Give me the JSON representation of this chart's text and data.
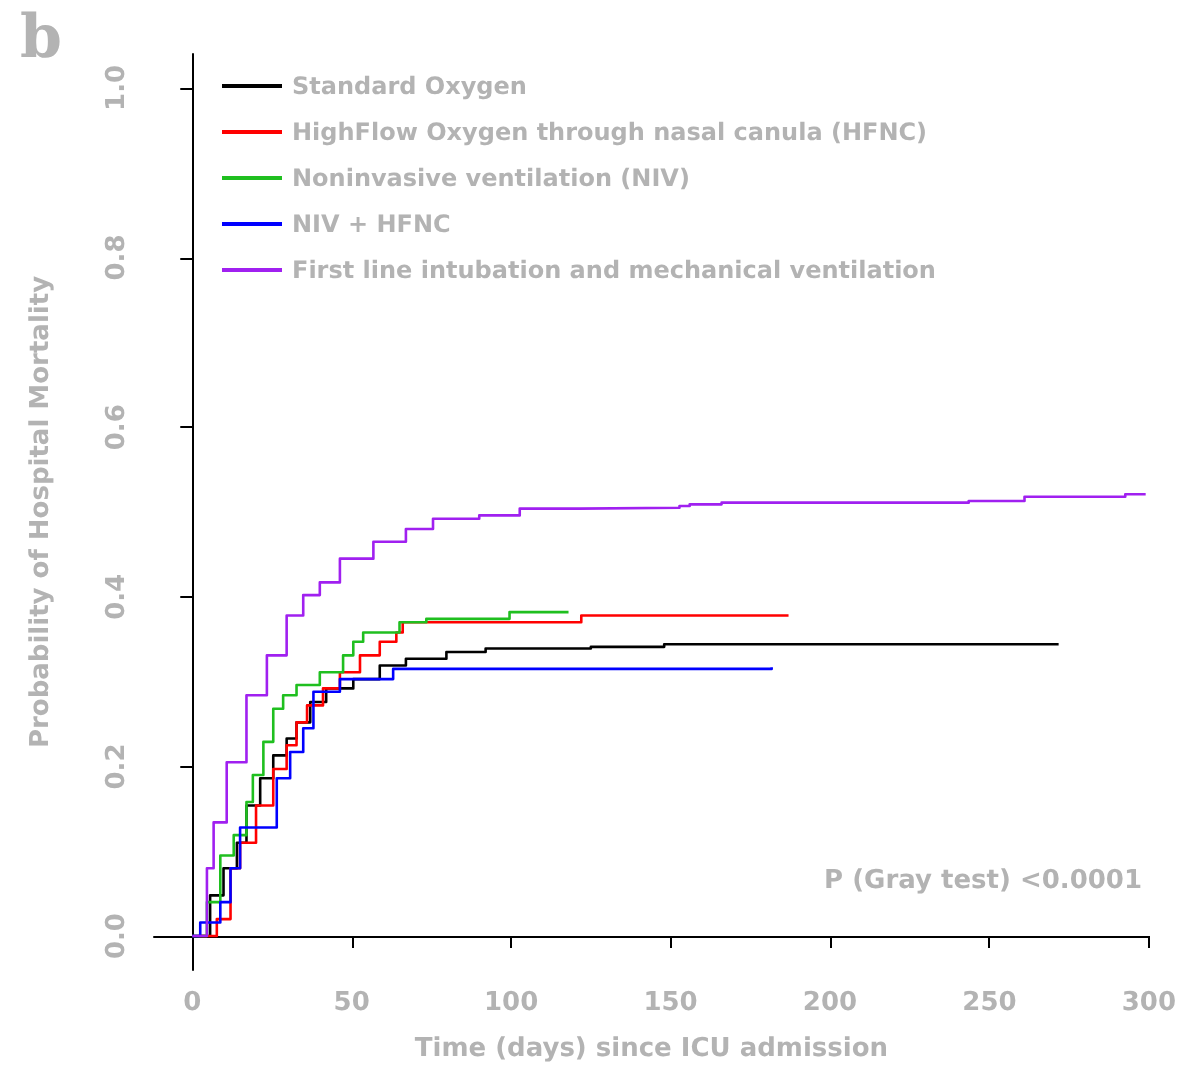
{
  "chart_data": {
    "type": "step",
    "xlabel": "Time (days) since ICU admission",
    "ylabel": "Probability of Hospital Mortality",
    "annotations": [
      "b",
      "P (Gray test) <0.0001"
    ],
    "xlim": [
      -12,
      300
    ],
    "xticks": [
      0,
      50,
      100,
      150,
      200,
      250,
      300
    ],
    "ylim": [
      -0.04,
      1.04
    ],
    "yticks": [
      {
        "value": 0,
        "label": "0.0"
      },
      0.2,
      0.4,
      0.6,
      0.8,
      {
        "value": 1,
        "label": "1.0"
      }
    ],
    "grid": false,
    "legend": "top left",
    "marker": "none",
    "line_style": "solid",
    "series": [
      {
        "name": "Standard Oxygen",
        "color": "#000000",
        "x": [
          0,
          5.6,
          9.8,
          14,
          17,
          21.3,
          25.4,
          29.6,
          32.7,
          37,
          42,
          50.5,
          58.8,
          67,
          79.7,
          92,
          125,
          148,
          271.7
        ],
        "values": [
          0,
          0.048,
          0.08,
          0.11,
          0.154,
          0.186,
          0.213,
          0.233,
          0.252,
          0.276,
          0.292,
          0.303,
          0.319,
          0.327,
          0.335,
          0.339,
          0.341,
          0.344,
          0.344
        ]
      },
      {
        "name": "HighFlow Oxygen through nasal canula (HFNC)",
        "color": "#ff0000",
        "x": [
          2,
          7.7,
          12,
          15,
          20,
          25.4,
          29.6,
          32.7,
          36,
          41,
          46.3,
          52.6,
          58.8,
          64,
          66,
          122,
          187
        ],
        "values": [
          0,
          0.02,
          0.08,
          0.11,
          0.154,
          0.197,
          0.225,
          0.252,
          0.272,
          0.292,
          0.311,
          0.331,
          0.347,
          0.358,
          0.37,
          0.378,
          0.378
        ]
      },
      {
        "name": "Noninvasive ventilation (NIV)",
        "color": "#1fbf1f",
        "x": [
          0,
          4.6,
          8.8,
          13,
          17,
          19,
          22.3,
          25.4,
          28.5,
          32.7,
          40,
          47.3,
          50.5,
          53.6,
          65,
          73.4,
          99.5,
          118
        ],
        "values": [
          0,
          0.04,
          0.095,
          0.119,
          0.158,
          0.19,
          0.229,
          0.268,
          0.284,
          0.296,
          0.311,
          0.331,
          0.347,
          0.358,
          0.37,
          0.374,
          0.382,
          0.382
        ]
      },
      {
        "name": "NIV + HFNC",
        "color": "#0000ff",
        "x": [
          0,
          2.5,
          8.8,
          12,
          15,
          26.5,
          30.7,
          34.8,
          38,
          46.3,
          63,
          181.7
        ],
        "values": [
          0,
          0.016,
          0.04,
          0.08,
          0.128,
          0.186,
          0.217,
          0.245,
          0.288,
          0.303,
          0.315,
          0.317
        ]
      },
      {
        "name": "First line intubation and mechanical ventilation",
        "color": "#a020f0",
        "x": [
          0,
          4.6,
          6.7,
          10.8,
          17,
          23.4,
          29.6,
          34.8,
          40,
          46.3,
          56.8,
          67,
          75.5,
          90,
          102.7,
          121.5,
          152.8,
          156,
          166,
          243.5,
          261,
          292.6,
          299
        ],
        "values": [
          0,
          0.08,
          0.134,
          0.205,
          0.284,
          0.331,
          0.378,
          0.402,
          0.417,
          0.445,
          0.465,
          0.48,
          0.492,
          0.496,
          0.504,
          0.505,
          0.507,
          0.509,
          0.511,
          0.513,
          0.518,
          0.521,
          0.521
        ]
      }
    ]
  }
}
